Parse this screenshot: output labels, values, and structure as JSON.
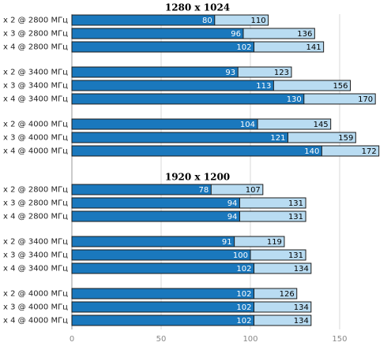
{
  "chart_data": [
    {
      "type": "bar",
      "title": "1280 x 1024",
      "categories": [
        "x 2 @ 2800 МГц",
        "x 3 @ 2800 МГц",
        "x 4 @ 2800 МГц",
        "x 2 @ 3400 МГц",
        "x 3 @ 3400 МГц",
        "x 4 @ 3400 МГц",
        "x 2 @ 4000 МГц",
        "x 3 @ 4000 МГц",
        "x 4 @ 4000 МГц"
      ],
      "series": [
        {
          "color": "#b9dcf2",
          "values": [
            110,
            136,
            141,
            123,
            156,
            170,
            145,
            159,
            172
          ]
        },
        {
          "color": "#1a78bd",
          "values": [
            80,
            96,
            102,
            93,
            113,
            130,
            104,
            121,
            140
          ]
        }
      ]
    },
    {
      "type": "bar",
      "title": "1920 x 1200",
      "categories": [
        "x 2 @ 2800 МГц",
        "x 3 @ 2800 МГц",
        "x 4 @ 2800 МГц",
        "x 2 @ 3400 МГц",
        "x 3 @ 3400 МГц",
        "x 4 @ 3400 МГц",
        "x 2 @ 4000 МГц",
        "x 3 @ 4000 МГц",
        "x 4 @ 4000 МГц"
      ],
      "series": [
        {
          "color": "#b9dcf2",
          "values": [
            107,
            131,
            131,
            119,
            131,
            134,
            126,
            134,
            134
          ]
        },
        {
          "color": "#1a78bd",
          "values": [
            78,
            94,
            94,
            91,
            100,
            102,
            102,
            102,
            102
          ]
        }
      ],
      "xlim": [
        0,
        177
      ],
      "xticks": [
        0,
        50,
        100,
        150
      ],
      "grid": true
    }
  ]
}
